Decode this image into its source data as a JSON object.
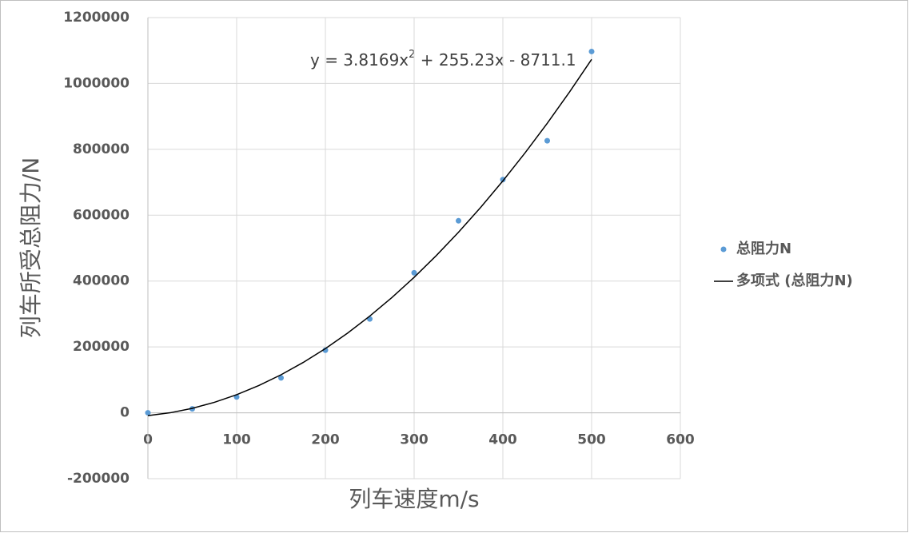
{
  "chart_data": {
    "type": "scatter",
    "x_label": "列车速度m/s",
    "y_label": "列车所受总阻力/N",
    "xlim": [
      0,
      600
    ],
    "ylim": [
      -200000,
      1200000
    ],
    "xticks": [
      0,
      100,
      200,
      300,
      400,
      500,
      600
    ],
    "yticks": [
      -200000,
      0,
      200000,
      400000,
      600000,
      800000,
      1000000,
      1200000
    ],
    "grid": true,
    "legend": "right",
    "series": [
      {
        "name": "总阻力N",
        "color": "#5b9bd5",
        "x": [
          0,
          50,
          100,
          150,
          200,
          250,
          300,
          350,
          400,
          450,
          500
        ],
        "values": [
          0,
          12000,
          48000,
          106000,
          190000,
          285000,
          425000,
          583000,
          708000,
          826000,
          1097000
        ]
      },
      {
        "name": "多项式 (总阻力N)",
        "color": "#000000",
        "kind": "line",
        "x": [
          0,
          25,
          50,
          75,
          100,
          125,
          150,
          175,
          200,
          225,
          250,
          275,
          300,
          325,
          350,
          375,
          400,
          425,
          450,
          475,
          500
        ],
        "values": [
          -8711,
          55,
          13593,
          31901,
          54981,
          82832,
          115454,
          152847,
          195011,
          241946,
          293653,
          350130,
          411379,
          477399,
          548190,
          623752,
          704085,
          789189,
          879065,
          973711,
          1073129
        ]
      }
    ],
    "annotation": {
      "text": "y = 3.8169x",
      "sup": "2",
      "rest": " + 255.23x - 8711.1"
    }
  }
}
